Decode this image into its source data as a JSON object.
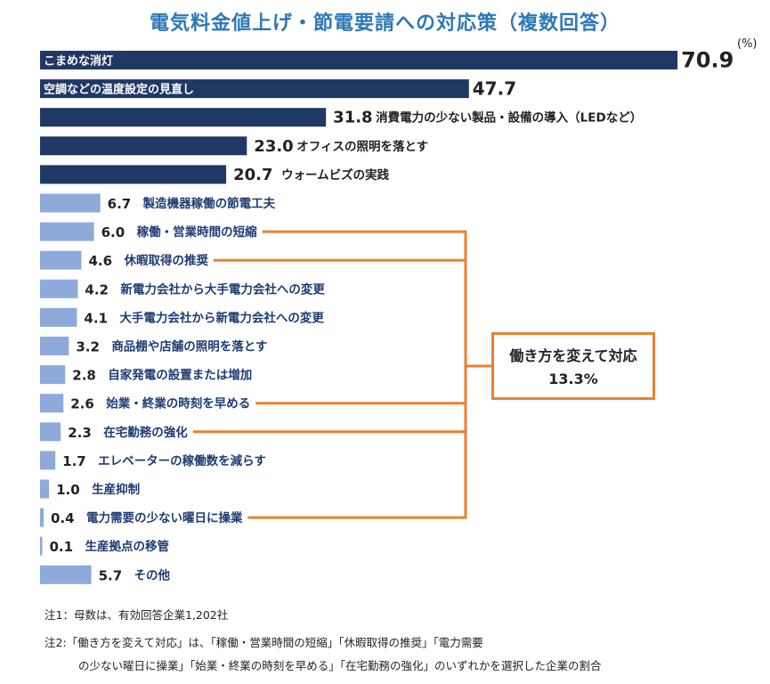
{
  "chart_data": {
    "type": "bar",
    "orientation": "horizontal",
    "title": "電気料金値上げ・節電要請への対応策（複数回答）",
    "unit": "(%)",
    "categories": [
      "こまめな消灯",
      "空調などの温度設定の見直し",
      "消費電力の少ない製品・設備の導入（LEDなど）",
      "オフィスの照明を落とす",
      "ウォームビズの実践",
      "製造機器稼働の節電工夫",
      "稼働・営業時間の短縮",
      "休暇取得の推奨",
      "新電力会社から大手電力会社への変更",
      "大手電力会社から新電力会社への変更",
      "商品棚や店舗の照明を落とす",
      "自家発電の設置または増加",
      "始業・終業の時刻を早める",
      "在宅勤務の強化",
      "エレベーターの稼働数を減らす",
      "生産抑制",
      "電力需要の少ない曜日に操業",
      "生産拠点の移管",
      "その他"
    ],
    "values": [
      70.9,
      47.7,
      31.8,
      23.0,
      20.7,
      6.7,
      6.0,
      4.6,
      4.2,
      4.1,
      3.2,
      2.8,
      2.6,
      2.3,
      1.7,
      1.0,
      0.4,
      0.1,
      5.7
    ],
    "value_labels": [
      "70.9",
      "47.7",
      "31.8",
      "23.0",
      "20.7",
      "6.7",
      "6.0",
      "4.6",
      "4.2",
      "4.1",
      "3.2",
      "2.8",
      "2.6",
      "2.3",
      "1.7",
      "1.0",
      "0.4",
      "0.1",
      "5.7"
    ],
    "colors": {
      "top": "#203864",
      "other": "#8eaadb",
      "bracket": "#e8822f",
      "title": "#2e78b7"
    },
    "callout": {
      "label": "働き方を変えて対応",
      "value": "13.3%",
      "members": [
        "稼働・営業時間の短縮",
        "休暇取得の推奨",
        "始業・終業の時刻を早める",
        "在宅勤務の強化",
        "電力需要の少ない曜日に操業"
      ]
    }
  },
  "notes": {
    "note1": "注1：母数は、有効回答企業1,202社",
    "note2_line1": "注2:「働き方を変えて対応」は、「稼働・営業時間の短縮」「休暇取得の推奨」「電力需要",
    "note2_line2": "の少ない曜日に操業」「始業・終業の時刻を早める」「在宅勤務の強化」のいずれかを選択した企業の割合"
  }
}
